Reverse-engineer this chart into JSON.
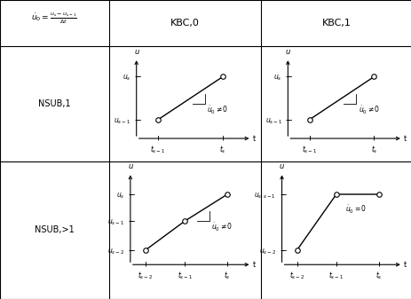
{
  "col1_header": "KBC,0",
  "col2_header": "KBC,1",
  "row1_label": "NSUB,1",
  "row2_label": "NSUB,>1",
  "background_color": "#ffffff",
  "line_color": "#000000",
  "col_divs": [
    0.0,
    0.265,
    0.633,
    1.0
  ],
  "row_divs": [
    1.0,
    0.845,
    0.46,
    0.0
  ],
  "font_size_header": 8,
  "font_size_label": 7,
  "font_size_tick": 5.5,
  "font_size_annot": 5.5,
  "font_size_axis_label": 6
}
